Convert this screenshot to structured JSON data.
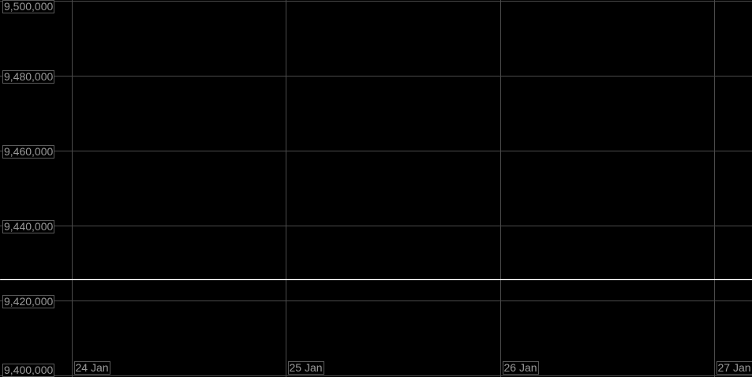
{
  "chart_data": {
    "type": "line",
    "title": "",
    "xlabel": "",
    "ylabel": "",
    "ylim": [
      9400000,
      9500000
    ],
    "yticks": [
      9500000,
      9480000,
      9460000,
      9440000,
      9420000,
      9400000
    ],
    "ytick_labels": [
      "9,500,000",
      "9,480,000",
      "9,460,000",
      "9,440,000",
      "9,420,000",
      "9,400,000"
    ],
    "xticks": [
      "24 Jan",
      "25 Jan",
      "26 Jan",
      "27 Jan"
    ],
    "xlim_days": [
      -0.335,
      3.18
    ],
    "grid": true,
    "series": [
      {
        "x_days": [
          -0.335,
          3.18
        ],
        "values": [
          9425700,
          9425700
        ],
        "color": "#ffffff"
      }
    ],
    "colors": {
      "background": "#000000",
      "grid": "#4a4a4a",
      "label_text": "#9a9a9a",
      "label_border": "#5a5a5a"
    }
  }
}
